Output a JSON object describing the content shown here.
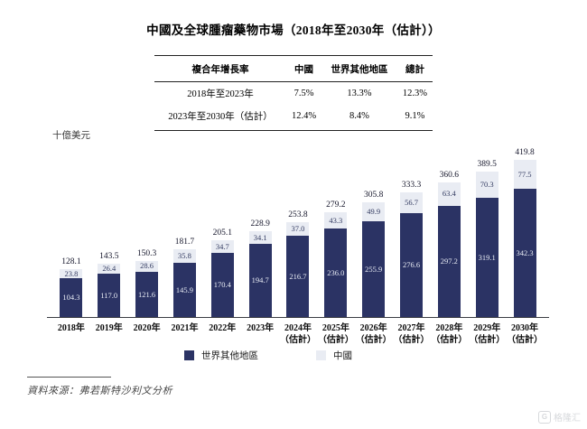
{
  "title": "中國及全球腫瘤藥物市場（2018年至2030年（估計））",
  "table": {
    "headers": [
      "複合年增長率",
      "中國",
      "世界其他地區",
      "總計"
    ],
    "rows": [
      {
        "cells": [
          "2018年至2023年",
          "7.5%",
          "13.3%",
          "12.3%"
        ]
      },
      {
        "cells": [
          "2023年至2030年（估計）",
          "12.4%",
          "8.4%",
          "9.1%"
        ]
      }
    ]
  },
  "chart_data": {
    "type": "bar",
    "stacked": true,
    "title": "中國及全球腫瘤藥物市場（2018年至2030年（估計））",
    "ylabel": "十億美元",
    "ylim": [
      0,
      420
    ],
    "grid": false,
    "legend_position": "bottom",
    "categories": [
      "2018年",
      "2019年",
      "2020年",
      "2021年",
      "2022年",
      "2023年",
      "2024年",
      "2025年",
      "2026年",
      "2027年",
      "2028年",
      "2029年",
      "2030年"
    ],
    "estimate_note": "（估計）",
    "estimate_from_index": 6,
    "series": [
      {
        "name": "世界其他地區",
        "color": "#2b3364",
        "values": [
          104.3,
          117.0,
          121.6,
          145.9,
          170.4,
          194.7,
          216.7,
          236.0,
          255.9,
          276.6,
          297.2,
          319.1,
          342.3
        ],
        "labels": [
          "104.3",
          "117.0",
          "121.6",
          "145.9",
          "170.4",
          "194.7",
          "216.7",
          "236.0",
          "255.9",
          "276.6",
          "297.2",
          "319.1",
          "342.3"
        ]
      },
      {
        "name": "中國",
        "color": "#e9ecf3",
        "values": [
          23.8,
          26.4,
          28.6,
          35.8,
          34.7,
          34.1,
          37.0,
          43.3,
          49.9,
          56.7,
          63.4,
          70.3,
          77.5
        ],
        "labels": [
          "23.8",
          "26.4",
          "28.6",
          "35.8",
          "34.7",
          "34.1",
          "37.0",
          "43.3",
          "49.9",
          "56.7",
          "63.4",
          "70.3",
          "77.5"
        ]
      }
    ],
    "totals": [
      128.1,
      143.5,
      150.3,
      181.7,
      205.1,
      228.9,
      253.8,
      279.2,
      305.8,
      333.3,
      360.6,
      389.5,
      419.8
    ],
    "total_labels": [
      "128.1",
      "143.5",
      "150.3",
      "181.7",
      "205.1",
      "228.9",
      "253.8",
      "279.2",
      "305.8",
      "333.3",
      "360.6",
      "389.5",
      "419.8"
    ]
  },
  "legend": {
    "world_label": "世界其他地區",
    "china_label": "中國"
  },
  "source": {
    "text": "資料來源：弗若斯特沙利文分析"
  },
  "watermark": {
    "logo_letter": "G",
    "text": "格隆汇"
  }
}
